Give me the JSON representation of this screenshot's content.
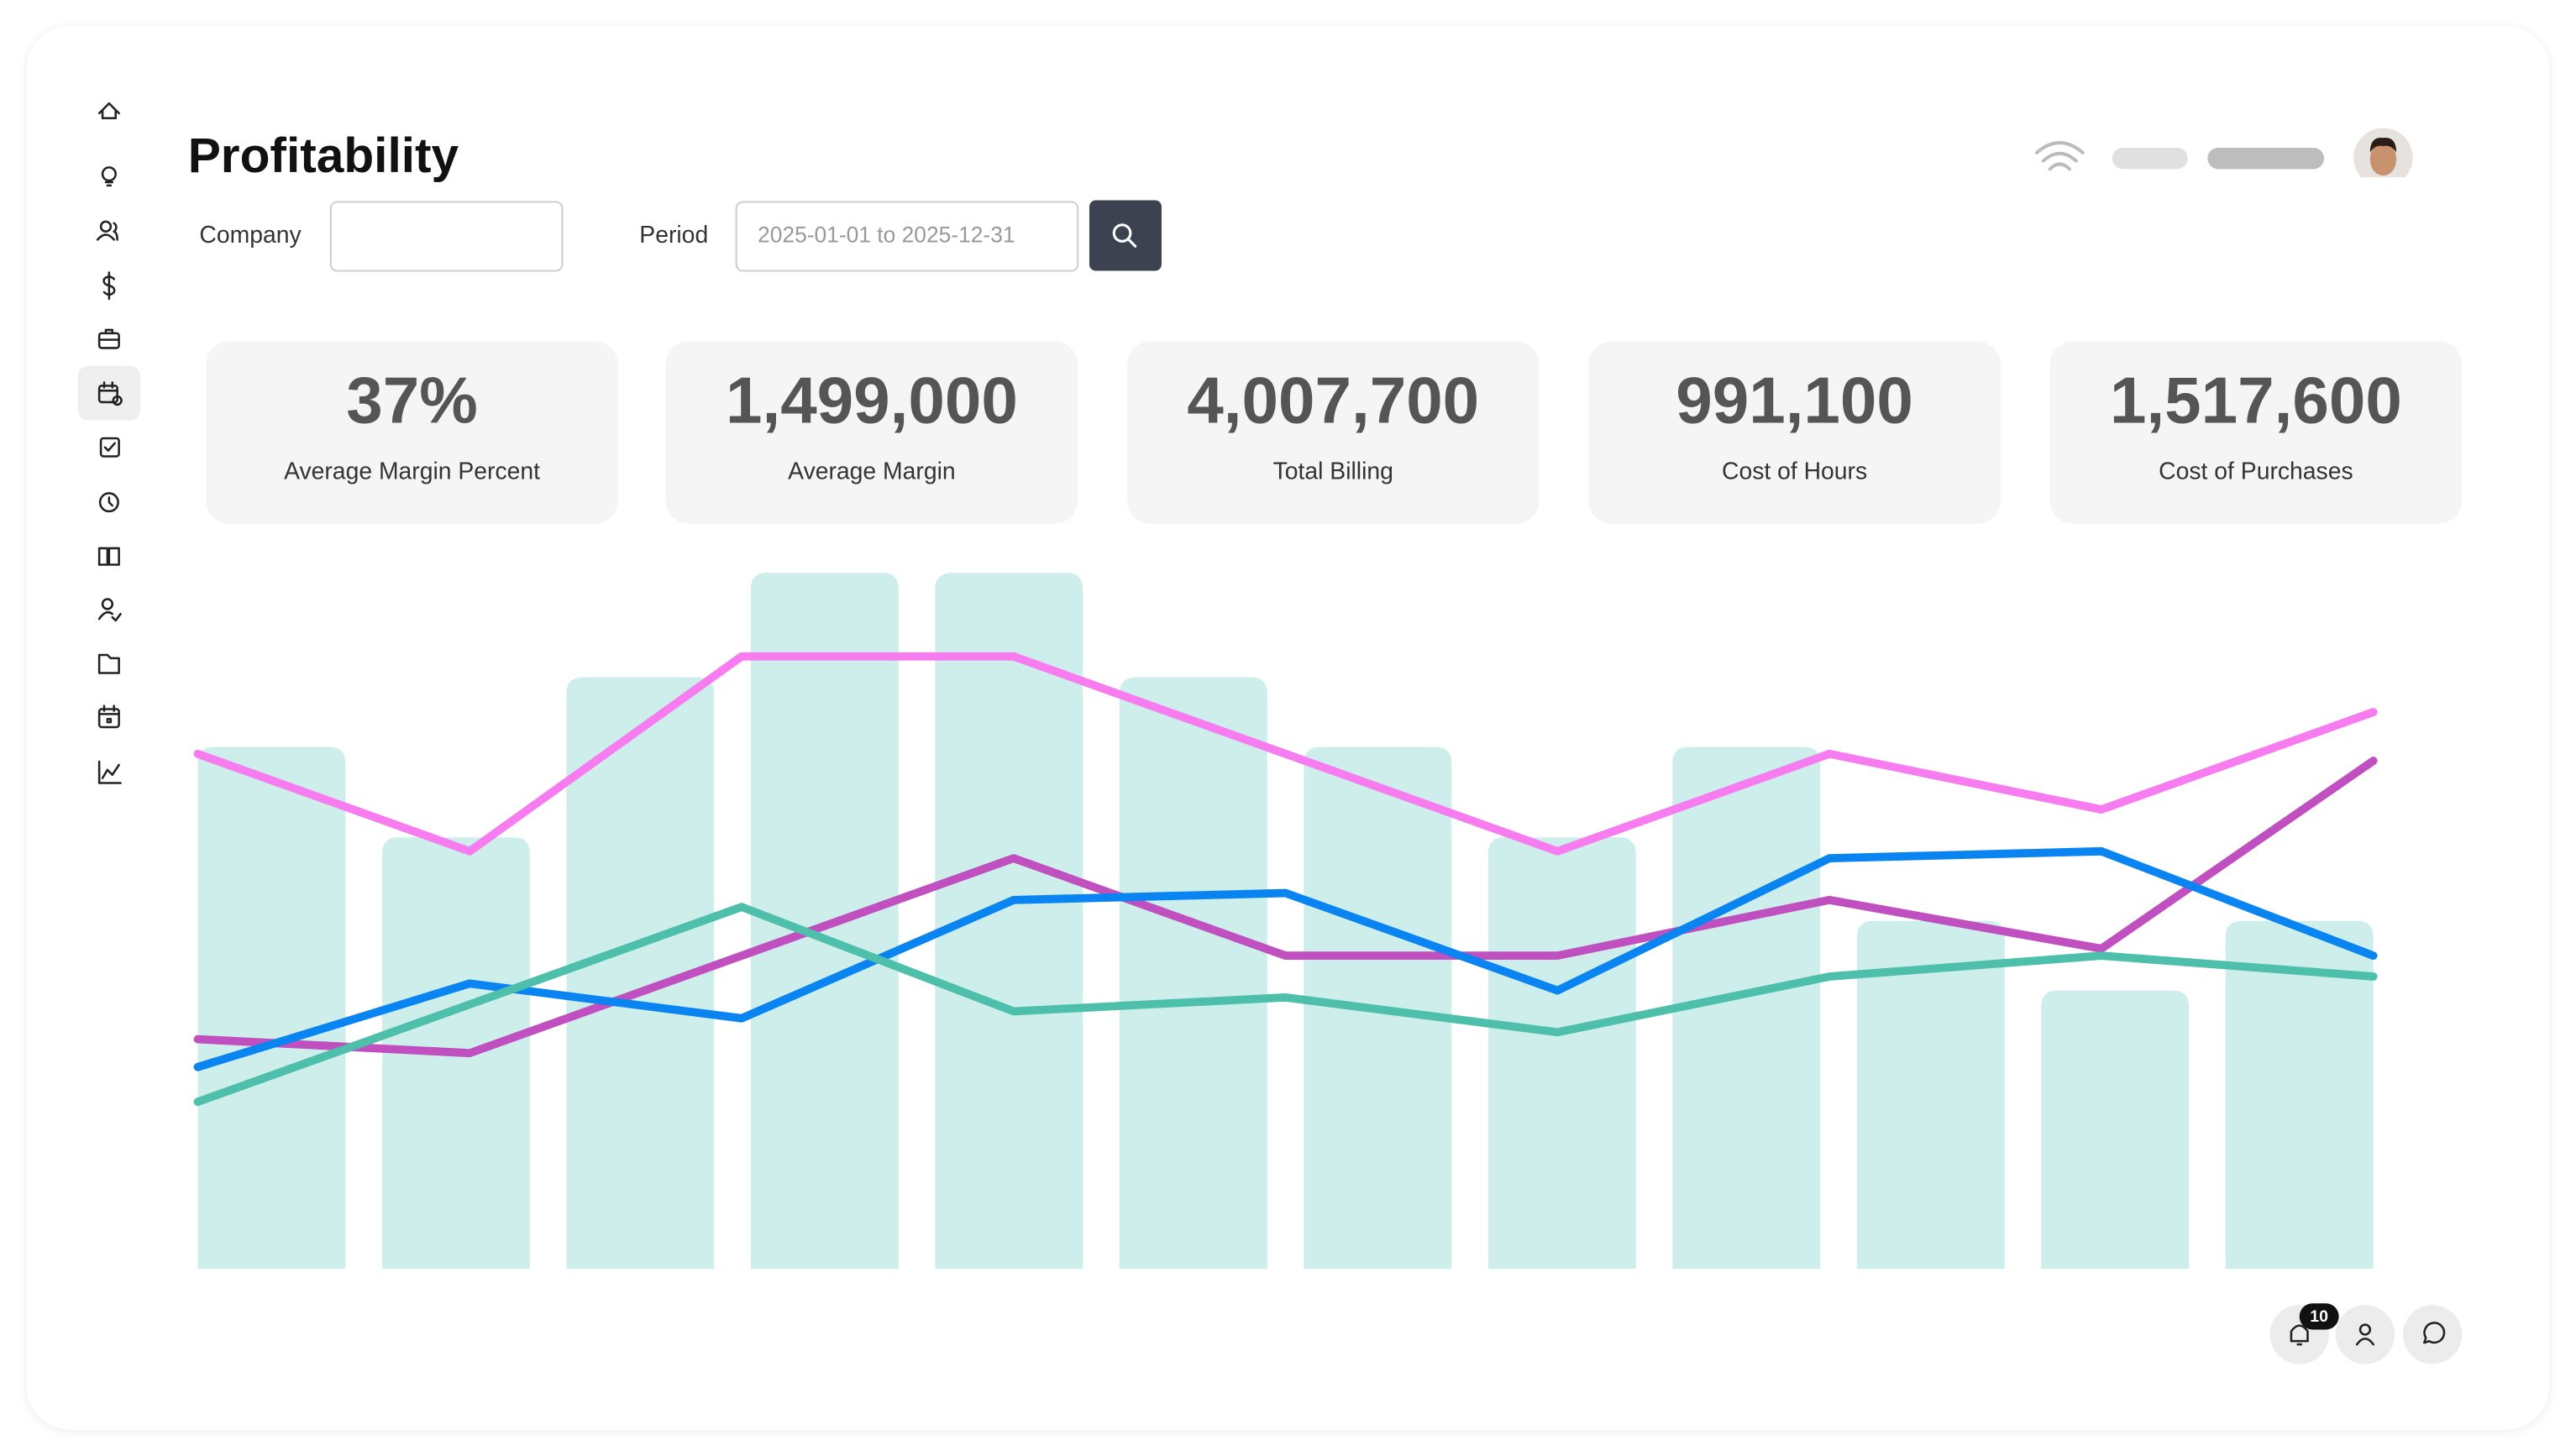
{
  "header": {
    "title": "Profitability"
  },
  "filters": {
    "company_label": "Company",
    "period_label": "Period",
    "period_placeholder": "2025-01-01 to 2025-12-31"
  },
  "kpis": [
    {
      "value": "37%",
      "label": "Average Margin Percent"
    },
    {
      "value": "1,499,000",
      "label": "Average Margin"
    },
    {
      "value": "4,007,700",
      "label": "Total Billing"
    },
    {
      "value": "991,100",
      "label": "Cost of Hours"
    },
    {
      "value": "1,517,600",
      "label": "Cost of Purchases"
    }
  ],
  "notifications": {
    "count": "10"
  },
  "chart_data": {
    "type": "bar-line",
    "ylim": [
      0,
      100
    ],
    "bars": {
      "color": "#cdeeea",
      "values": [
        75,
        62,
        85,
        100,
        100,
        85,
        75,
        62,
        75,
        50,
        40,
        50
      ]
    },
    "series": [
      {
        "color": "#f77cf0",
        "values": [
          74,
          60,
          88,
          88,
          74,
          60,
          74,
          66,
          80
        ]
      },
      {
        "color": "#c04fbf",
        "values": [
          33,
          31,
          45,
          59,
          45,
          45,
          53,
          46,
          73
        ]
      },
      {
        "color": "#0a84f0",
        "values": [
          29,
          41,
          36,
          53,
          54,
          40,
          59,
          60,
          45
        ]
      },
      {
        "color": "#4dbfaa",
        "values": [
          24,
          38,
          52,
          37,
          39,
          34,
          42,
          45,
          42
        ]
      }
    ]
  }
}
